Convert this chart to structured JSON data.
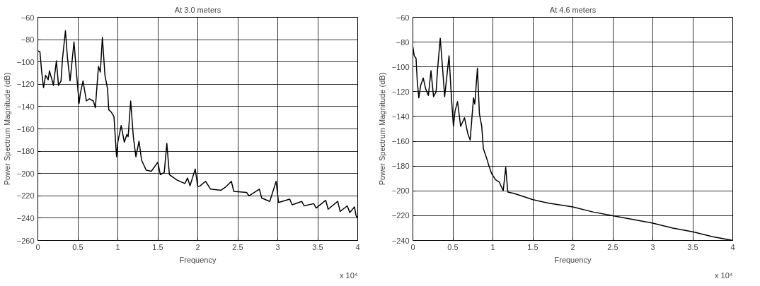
{
  "chart_data": [
    {
      "type": "line",
      "title": "At 3.0 meters",
      "xlabel": "Frequency",
      "ylabel": "Power Spectrum Magnitude (dB)",
      "annotations": [
        "x 10⁴"
      ],
      "x": [
        0,
        0.026,
        0.048,
        0.071,
        0.097,
        0.129,
        0.145,
        0.177,
        0.194,
        0.232,
        0.258,
        0.29,
        0.307,
        0.345,
        0.371,
        0.403,
        0.452,
        0.484,
        0.516,
        0.532,
        0.565,
        0.607,
        0.645,
        0.694,
        0.719,
        0.758,
        0.781,
        0.807,
        0.839,
        0.871,
        0.887,
        0.919,
        0.952,
        0.984,
        1.0,
        1.042,
        1.081,
        1.113,
        1.129,
        1.161,
        1.194,
        1.226,
        1.265,
        1.297,
        1.355,
        1.419,
        1.5,
        1.532,
        1.581,
        1.613,
        1.645,
        1.742,
        1.839,
        1.871,
        1.903,
        1.968,
        2.0,
        2.03,
        2.097,
        2.16,
        2.29,
        2.35,
        2.42,
        2.45,
        2.61,
        2.64,
        2.77,
        2.8,
        2.9,
        2.98,
        3.01,
        3.15,
        3.18,
        3.3,
        3.33,
        3.45,
        3.48,
        3.6,
        3.63,
        3.75,
        3.78,
        3.87,
        3.9,
        3.96,
        3.98,
        4.0
      ],
      "series": [
        {
          "color": "#000000",
          "values": [
            -90,
            -91,
            -109,
            -123,
            -112,
            -116,
            -108,
            -116,
            -121,
            -99,
            -121,
            -117,
            -98,
            -72,
            -97,
            -117,
            -82,
            -111,
            -137,
            -128,
            -117,
            -135,
            -133,
            -135,
            -141,
            -104,
            -109,
            -78,
            -112,
            -124,
            -143,
            -145,
            -149,
            -185,
            -172,
            -157,
            -172,
            -165,
            -167,
            -135,
            -167,
            -185,
            -171,
            -188,
            -197,
            -198,
            -190,
            -201,
            -199,
            -173,
            -201,
            -206,
            -209,
            -204,
            -211,
            -196,
            -212,
            -211,
            -207,
            -214,
            -215,
            -212,
            -207,
            -216,
            -217,
            -220,
            -214,
            -222,
            -225,
            -207,
            -226,
            -223,
            -228,
            -225,
            -229,
            -227,
            -231,
            -224,
            -232,
            -225,
            -234,
            -229,
            -235,
            -230,
            -238,
            -240
          ]
        }
      ],
      "xlim": [
        0,
        4
      ],
      "ylim": [
        -260,
        -60
      ],
      "xticks": [
        0,
        0.5,
        1,
        1.5,
        2,
        2.5,
        3,
        3.5,
        4
      ],
      "yticks": [
        -260,
        -240,
        -220,
        -200,
        -180,
        -160,
        -140,
        -120,
        -100,
        -80,
        -60
      ],
      "grid": true
    },
    {
      "type": "line",
      "title": "At 4.6 meters",
      "xlabel": "Frequency",
      "ylabel": "Power Spectrum Magnitude (dB)",
      "annotations": [
        "x 10⁴"
      ],
      "x": [
        0,
        0.016,
        0.039,
        0.055,
        0.074,
        0.097,
        0.129,
        0.161,
        0.194,
        0.226,
        0.258,
        0.29,
        0.307,
        0.342,
        0.371,
        0.397,
        0.452,
        0.484,
        0.507,
        0.526,
        0.558,
        0.597,
        0.645,
        0.687,
        0.716,
        0.758,
        0.774,
        0.807,
        0.832,
        0.861,
        0.881,
        0.919,
        0.952,
        0.984,
        1.032,
        1.081,
        1.129,
        1.161,
        1.187,
        1.258,
        1.355,
        1.494,
        1.7,
        2.0,
        2.25,
        2.5,
        2.75,
        3.0,
        3.25,
        3.5,
        3.75,
        4.0
      ],
      "series": [
        {
          "color": "#000000",
          "values": [
            -84,
            -91,
            -93,
            -112,
            -125,
            -115,
            -109,
            -118,
            -123,
            -103,
            -124,
            -120,
            -103,
            -77,
            -101,
            -124,
            -91,
            -127,
            -148,
            -136,
            -128,
            -148,
            -141,
            -154,
            -159,
            -125,
            -130,
            -101,
            -138,
            -148,
            -166,
            -173,
            -180,
            -186,
            -191,
            -193,
            -200,
            -181,
            -201,
            -202,
            -204,
            -207,
            -210,
            -213,
            -217,
            -220,
            -223,
            -226,
            -230,
            -233,
            -237,
            -240
          ]
        }
      ],
      "xlim": [
        0,
        4
      ],
      "ylim": [
        -240,
        -60
      ],
      "xticks": [
        0,
        0.5,
        1,
        1.5,
        2,
        2.5,
        3,
        3.5,
        4
      ],
      "yticks": [
        -240,
        -220,
        -200,
        -180,
        -160,
        -140,
        -120,
        -100,
        -80,
        -60
      ],
      "grid": true
    }
  ]
}
